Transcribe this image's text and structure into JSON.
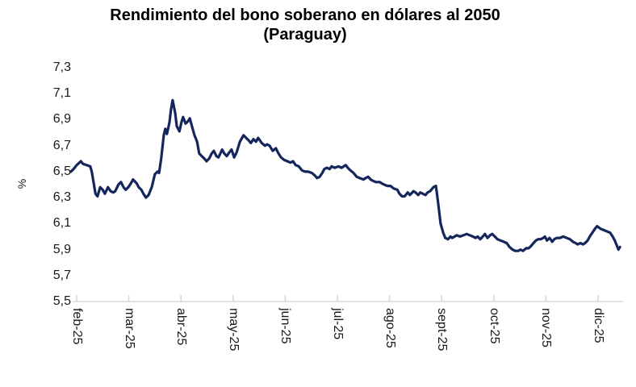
{
  "chart_data": {
    "type": "line",
    "title": "Rendimiento del bono soberano en dólares al 2050",
    "subtitle": "(Paraguay)",
    "xlabel": "",
    "ylabel": "%",
    "ylim": [
      5.5,
      7.3
    ],
    "ytick_step": 0.2,
    "ytick_labels": [
      "7,3",
      "7,1",
      "6,9",
      "6,7",
      "6,5",
      "6,3",
      "6,1",
      "5,9",
      "5,7",
      "5,5"
    ],
    "x_categories": [
      "feb-25",
      "mar-25",
      "abr-25",
      "may-25",
      "jun-25",
      "jul-25",
      "ago-25",
      "sept-25",
      "oct-25",
      "nov-25",
      "dic-25"
    ],
    "grid": "off",
    "legend": "none",
    "line_color": "#14265C",
    "axis_color": "#D9D9D9",
    "series": [
      {
        "name": "Rendimiento del bono soberano en dólares al 2050 (Paraguay)",
        "unit": "%",
        "x_unit": "month index (0 = feb-25, 10 = dic-25)",
        "points": [
          [
            -0.11,
            6.5
          ],
          [
            -0.06,
            6.52
          ],
          [
            0,
            6.55
          ],
          [
            0.08,
            6.58
          ],
          [
            0.12,
            6.56
          ],
          [
            0.19,
            6.55
          ],
          [
            0.26,
            6.54
          ],
          [
            0.29,
            6.5
          ],
          [
            0.36,
            6.33
          ],
          [
            0.4,
            6.31
          ],
          [
            0.45,
            6.38
          ],
          [
            0.5,
            6.36
          ],
          [
            0.54,
            6.33
          ],
          [
            0.6,
            6.38
          ],
          [
            0.65,
            6.35
          ],
          [
            0.7,
            6.34
          ],
          [
            0.74,
            6.35
          ],
          [
            0.8,
            6.4
          ],
          [
            0.85,
            6.42
          ],
          [
            0.9,
            6.38
          ],
          [
            0.94,
            6.36
          ],
          [
            0.99,
            6.38
          ],
          [
            1.04,
            6.41
          ],
          [
            1.08,
            6.44
          ],
          [
            1.15,
            6.41
          ],
          [
            1.19,
            6.38
          ],
          [
            1.24,
            6.36
          ],
          [
            1.28,
            6.33
          ],
          [
            1.33,
            6.3
          ],
          [
            1.38,
            6.32
          ],
          [
            1.44,
            6.38
          ],
          [
            1.5,
            6.48
          ],
          [
            1.55,
            6.5
          ],
          [
            1.58,
            6.49
          ],
          [
            1.62,
            6.6
          ],
          [
            1.67,
            6.78
          ],
          [
            1.7,
            6.83
          ],
          [
            1.73,
            6.79
          ],
          [
            1.78,
            6.88
          ],
          [
            1.81,
            6.98
          ],
          [
            1.84,
            7.05
          ],
          [
            1.89,
            6.95
          ],
          [
            1.92,
            6.85
          ],
          [
            1.97,
            6.81
          ],
          [
            2.01,
            6.88
          ],
          [
            2.04,
            6.92
          ],
          [
            2.09,
            6.87
          ],
          [
            2.14,
            6.89
          ],
          [
            2.17,
            6.91
          ],
          [
            2.21,
            6.85
          ],
          [
            2.26,
            6.78
          ],
          [
            2.31,
            6.73
          ],
          [
            2.35,
            6.64
          ],
          [
            2.4,
            6.62
          ],
          [
            2.45,
            6.6
          ],
          [
            2.49,
            6.58
          ],
          [
            2.54,
            6.6
          ],
          [
            2.59,
            6.64
          ],
          [
            2.63,
            6.66
          ],
          [
            2.68,
            6.62
          ],
          [
            2.72,
            6.61
          ],
          [
            2.79,
            6.67
          ],
          [
            2.83,
            6.64
          ],
          [
            2.88,
            6.62
          ],
          [
            2.93,
            6.65
          ],
          [
            2.97,
            6.67
          ],
          [
            3.02,
            6.61
          ],
          [
            3.07,
            6.65
          ],
          [
            3.13,
            6.73
          ],
          [
            3.2,
            6.78
          ],
          [
            3.25,
            6.76
          ],
          [
            3.3,
            6.74
          ],
          [
            3.34,
            6.72
          ],
          [
            3.39,
            6.75
          ],
          [
            3.44,
            6.73
          ],
          [
            3.48,
            6.76
          ],
          [
            3.55,
            6.72
          ],
          [
            3.61,
            6.7
          ],
          [
            3.65,
            6.71
          ],
          [
            3.7,
            6.7
          ],
          [
            3.76,
            6.66
          ],
          [
            3.82,
            6.68
          ],
          [
            3.87,
            6.64
          ],
          [
            3.92,
            6.61
          ],
          [
            3.98,
            6.59
          ],
          [
            4.04,
            6.58
          ],
          [
            4.1,
            6.57
          ],
          [
            4.15,
            6.58
          ],
          [
            4.2,
            6.55
          ],
          [
            4.26,
            6.54
          ],
          [
            4.32,
            6.51
          ],
          [
            4.38,
            6.5
          ],
          [
            4.44,
            6.5
          ],
          [
            4.51,
            6.49
          ],
          [
            4.57,
            6.47
          ],
          [
            4.61,
            6.45
          ],
          [
            4.66,
            6.46
          ],
          [
            4.71,
            6.49
          ],
          [
            4.75,
            6.52
          ],
          [
            4.8,
            6.53
          ],
          [
            4.85,
            6.52
          ],
          [
            4.89,
            6.54
          ],
          [
            4.95,
            6.53
          ],
          [
            5.02,
            6.54
          ],
          [
            5.08,
            6.53
          ],
          [
            5.12,
            6.54
          ],
          [
            5.16,
            6.55
          ],
          [
            5.2,
            6.53
          ],
          [
            5.25,
            6.51
          ],
          [
            5.31,
            6.49
          ],
          [
            5.37,
            6.46
          ],
          [
            5.43,
            6.45
          ],
          [
            5.5,
            6.44
          ],
          [
            5.54,
            6.45
          ],
          [
            5.59,
            6.46
          ],
          [
            5.64,
            6.44
          ],
          [
            5.68,
            6.43
          ],
          [
            5.74,
            6.42
          ],
          [
            5.81,
            6.42
          ],
          [
            5.85,
            6.41
          ],
          [
            5.9,
            6.4
          ],
          [
            5.96,
            6.39
          ],
          [
            6.02,
            6.39
          ],
          [
            6.08,
            6.37
          ],
          [
            6.15,
            6.36
          ],
          [
            6.19,
            6.33
          ],
          [
            6.24,
            6.31
          ],
          [
            6.29,
            6.31
          ],
          [
            6.35,
            6.34
          ],
          [
            6.39,
            6.32
          ],
          [
            6.46,
            6.35
          ],
          [
            6.5,
            6.34
          ],
          [
            6.55,
            6.32
          ],
          [
            6.59,
            6.34
          ],
          [
            6.64,
            6.33
          ],
          [
            6.69,
            6.32
          ],
          [
            6.73,
            6.34
          ],
          [
            6.78,
            6.35
          ],
          [
            6.84,
            6.38
          ],
          [
            6.89,
            6.39
          ],
          [
            6.92,
            6.3
          ],
          [
            6.95,
            6.2
          ],
          [
            6.98,
            6.1
          ],
          [
            7.03,
            6.03
          ],
          [
            7.07,
            5.99
          ],
          [
            7.12,
            5.98
          ],
          [
            7.17,
            6.0
          ],
          [
            7.2,
            5.99
          ],
          [
            7.25,
            6.0
          ],
          [
            7.29,
            6.01
          ],
          [
            7.35,
            6.0
          ],
          [
            7.42,
            6.01
          ],
          [
            7.48,
            6.02
          ],
          [
            7.54,
            6.01
          ],
          [
            7.6,
            6.0
          ],
          [
            7.65,
            5.99
          ],
          [
            7.69,
            6.0
          ],
          [
            7.74,
            5.98
          ],
          [
            7.79,
            6.0
          ],
          [
            7.83,
            6.02
          ],
          [
            7.88,
            5.99
          ],
          [
            7.93,
            6.01
          ],
          [
            7.97,
            6.02
          ],
          [
            8.02,
            6.0
          ],
          [
            8.07,
            5.98
          ],
          [
            8.13,
            5.97
          ],
          [
            8.19,
            5.96
          ],
          [
            8.25,
            5.95
          ],
          [
            8.3,
            5.92
          ],
          [
            8.36,
            5.9
          ],
          [
            8.41,
            5.89
          ],
          [
            8.47,
            5.89
          ],
          [
            8.51,
            5.9
          ],
          [
            8.56,
            5.89
          ],
          [
            8.62,
            5.91
          ],
          [
            8.67,
            5.91
          ],
          [
            8.72,
            5.93
          ],
          [
            8.76,
            5.95
          ],
          [
            8.81,
            5.97
          ],
          [
            8.85,
            5.98
          ],
          [
            8.9,
            5.98
          ],
          [
            8.95,
            5.99
          ],
          [
            8.98,
            6.0
          ],
          [
            9.02,
            5.97
          ],
          [
            9.07,
            5.99
          ],
          [
            9.12,
            5.96
          ],
          [
            9.16,
            5.98
          ],
          [
            9.21,
            5.99
          ],
          [
            9.27,
            5.99
          ],
          [
            9.33,
            6.0
          ],
          [
            9.4,
            5.99
          ],
          [
            9.46,
            5.98
          ],
          [
            9.52,
            5.96
          ],
          [
            9.57,
            5.95
          ],
          [
            9.61,
            5.94
          ],
          [
            9.66,
            5.95
          ],
          [
            9.71,
            5.94
          ],
          [
            9.75,
            5.95
          ],
          [
            9.8,
            5.97
          ],
          [
            9.84,
            6.0
          ],
          [
            9.89,
            6.03
          ],
          [
            9.94,
            6.06
          ],
          [
            9.98,
            6.08
          ],
          [
            10.05,
            6.06
          ],
          [
            10.11,
            6.05
          ],
          [
            10.17,
            6.04
          ],
          [
            10.23,
            6.03
          ],
          [
            10.28,
            6.0
          ],
          [
            10.32,
            5.97
          ],
          [
            10.36,
            5.93
          ],
          [
            10.39,
            5.9
          ],
          [
            10.42,
            5.92
          ]
        ]
      }
    ]
  }
}
